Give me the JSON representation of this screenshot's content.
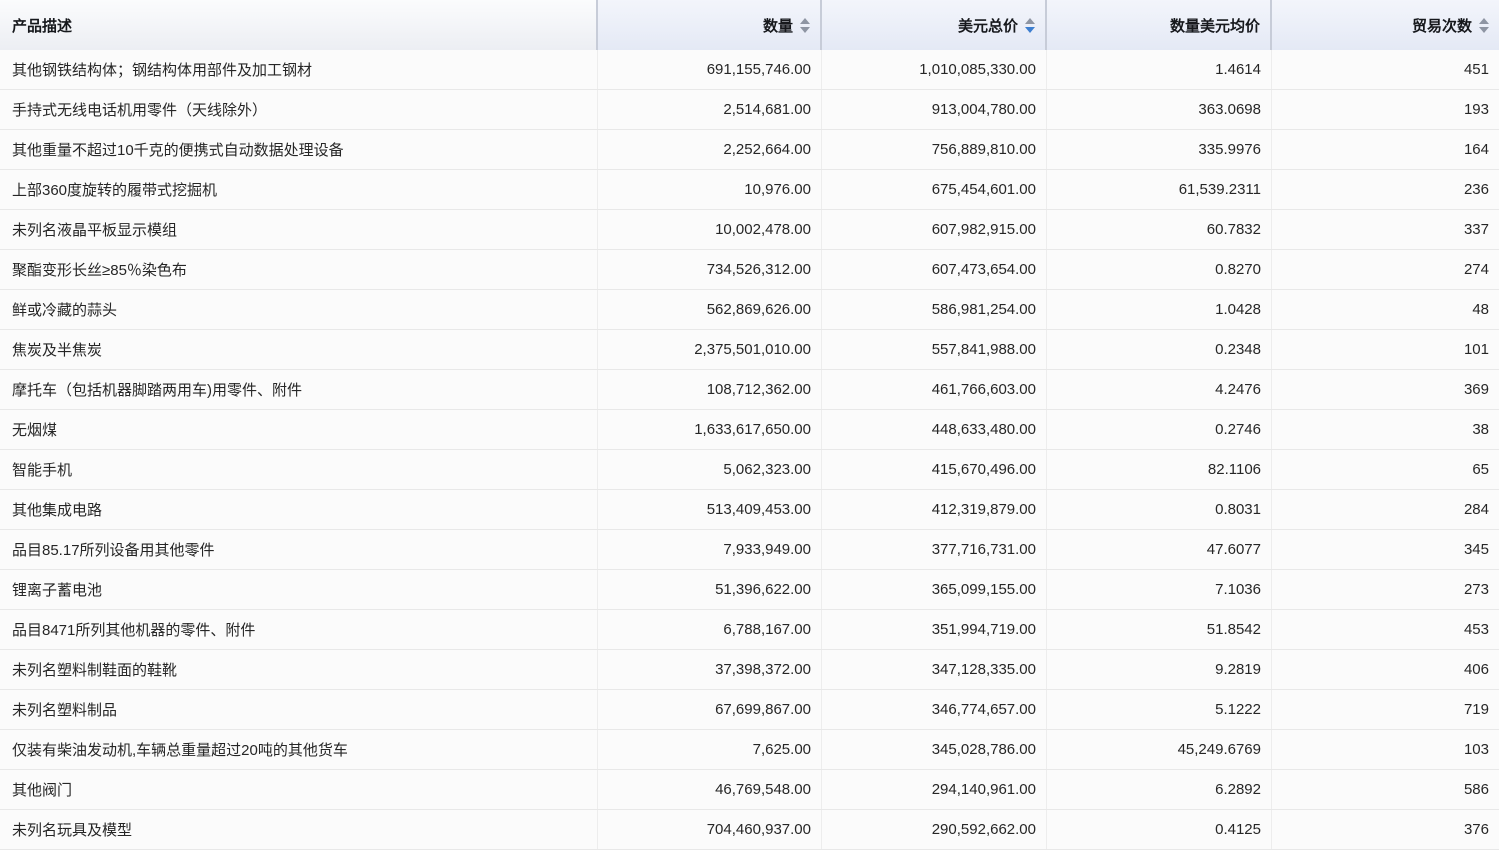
{
  "colors": {
    "sort_active_arrow": "#3e7fd0",
    "sort_idle_arrow": "#8e95a3",
    "header_numeric_bg": "#e4e9f5",
    "header_desc_bg": "#eceef3",
    "row_bg": "#fbfbfb"
  },
  "table": {
    "columns": [
      {
        "key": "desc",
        "label": "产品描述",
        "align": "left",
        "sortable": false,
        "sort": "none"
      },
      {
        "key": "qty",
        "label": "数量",
        "align": "right",
        "sortable": true,
        "sort": "none"
      },
      {
        "key": "usd",
        "label": "美元总价",
        "align": "right",
        "sortable": true,
        "sort": "desc"
      },
      {
        "key": "avg",
        "label": "数量美元均价",
        "align": "right",
        "sortable": false,
        "sort": "none"
      },
      {
        "key": "trades",
        "label": "贸易次数",
        "align": "right",
        "sortable": true,
        "sort": "none"
      }
    ],
    "rows": [
      [
        "其他钢铁结构体；钢结构体用部件及加工钢材",
        "691,155,746.00",
        "1,010,085,330.00",
        "1.4614",
        "451"
      ],
      [
        "手持式无线电话机用零件（天线除外）",
        "2,514,681.00",
        "913,004,780.00",
        "363.0698",
        "193"
      ],
      [
        "其他重量不超过10千克的便携式自动数据处理设备",
        "2,252,664.00",
        "756,889,810.00",
        "335.9976",
        "164"
      ],
      [
        "上部360度旋转的履带式挖掘机",
        "10,976.00",
        "675,454,601.00",
        "61,539.2311",
        "236"
      ],
      [
        "未列名液晶平板显示模组",
        "10,002,478.00",
        "607,982,915.00",
        "60.7832",
        "337"
      ],
      [
        "聚酯变形长丝≥85％染色布",
        "734,526,312.00",
        "607,473,654.00",
        "0.8270",
        "274"
      ],
      [
        "鲜或冷藏的蒜头",
        "562,869,626.00",
        "586,981,254.00",
        "1.0428",
        "48"
      ],
      [
        "焦炭及半焦炭",
        "2,375,501,010.00",
        "557,841,988.00",
        "0.2348",
        "101"
      ],
      [
        "摩托车（包括机器脚踏两用车)用零件、附件",
        "108,712,362.00",
        "461,766,603.00",
        "4.2476",
        "369"
      ],
      [
        "无烟煤",
        "1,633,617,650.00",
        "448,633,480.00",
        "0.2746",
        "38"
      ],
      [
        "智能手机",
        "5,062,323.00",
        "415,670,496.00",
        "82.1106",
        "65"
      ],
      [
        "其他集成电路",
        "513,409,453.00",
        "412,319,879.00",
        "0.8031",
        "284"
      ],
      [
        "品目85.17所列设备用其他零件",
        "7,933,949.00",
        "377,716,731.00",
        "47.6077",
        "345"
      ],
      [
        "锂离子蓄电池",
        "51,396,622.00",
        "365,099,155.00",
        "7.1036",
        "273"
      ],
      [
        "品目8471所列其他机器的零件、附件",
        "6,788,167.00",
        "351,994,719.00",
        "51.8542",
        "453"
      ],
      [
        "未列名塑料制鞋面的鞋靴",
        "37,398,372.00",
        "347,128,335.00",
        "9.2819",
        "406"
      ],
      [
        "未列名塑料制品",
        "67,699,867.00",
        "346,774,657.00",
        "5.1222",
        "719"
      ],
      [
        "仅装有柴油发动机,车辆总重量超过20吨的其他货车",
        "7,625.00",
        "345,028,786.00",
        "45,249.6769",
        "103"
      ],
      [
        "其他阀门",
        "46,769,548.00",
        "294,140,961.00",
        "6.2892",
        "586"
      ],
      [
        "未列名玩具及模型",
        "704,460,937.00",
        "290,592,662.00",
        "0.4125",
        "376"
      ]
    ]
  }
}
